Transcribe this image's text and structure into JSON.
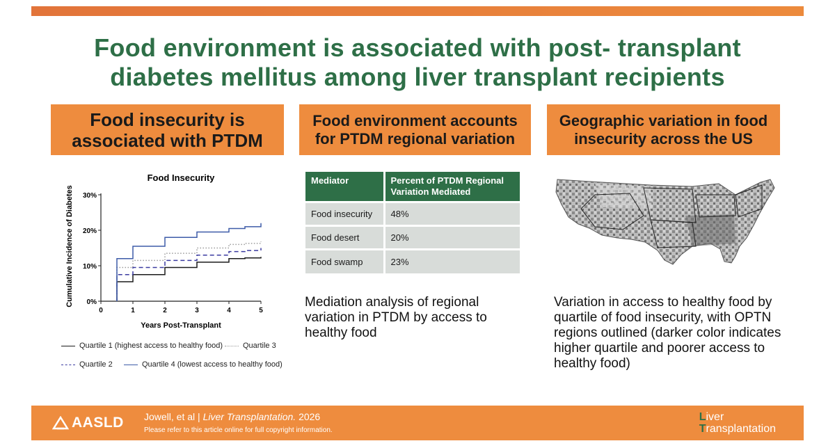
{
  "title": {
    "line1": "Food environment is associated with post- transplant",
    "line2": "diabetes mellitus among liver transplant recipients"
  },
  "panels": {
    "p1": {
      "heading_line1": "Food insecurity is",
      "heading_line2": "associated with PTDM"
    },
    "p2": {
      "heading_line1": "Food environment accounts",
      "heading_line2": "for PTDM regional variation"
    },
    "p3": {
      "heading_line1": "Geographic variation in food",
      "heading_line2": "insecurity across the US"
    }
  },
  "chart_data": {
    "type": "line",
    "step": true,
    "title": "Food Insecurity",
    "xlabel": "Years Post-Transplant",
    "ylabel": "Cumulative Incidence of Diabetes",
    "x_ticks": [
      "0",
      "1",
      "2",
      "3",
      "4",
      "5"
    ],
    "y_ticks": [
      "0%",
      "10%",
      "20%",
      "30%"
    ],
    "xlim": [
      0,
      5
    ],
    "ylim": [
      0,
      30
    ],
    "series": [
      {
        "name": "Quartile 1 (highest access to healthy food)",
        "style": "solid",
        "color": "#1a1a1a",
        "x": [
          0.5,
          1,
          2,
          3,
          4,
          4.5,
          5
        ],
        "y": [
          5.5,
          7.5,
          9.5,
          11,
          12,
          12.2,
          12.5
        ]
      },
      {
        "name": "Quartile 2",
        "style": "dashed",
        "color": "#3a3aa0",
        "x": [
          0.5,
          1,
          2,
          3,
          4,
          4.5,
          5
        ],
        "y": [
          7.5,
          9.5,
          11.5,
          13,
          14,
          14.3,
          15
        ]
      },
      {
        "name": "Quartile 3",
        "style": "dotted",
        "color": "#999999",
        "x": [
          0.5,
          1,
          2,
          3,
          4,
          4.5,
          5
        ],
        "y": [
          9.5,
          11.5,
          13.5,
          15,
          16,
          16.3,
          16.8
        ]
      },
      {
        "name": "Quartile 4 (lowest access to healthy food)",
        "style": "solid",
        "color": "#3d5ba8",
        "x": [
          0.5,
          1,
          2,
          3,
          4,
          4.5,
          5
        ],
        "y": [
          12,
          15.5,
          18,
          19.5,
          20.5,
          21,
          22
        ]
      }
    ],
    "legend_position": "bottom"
  },
  "mediation_table": {
    "headers": [
      "Mediator",
      "Percent of PTDM Regional Variation  Mediated"
    ],
    "rows": [
      [
        "Food insecurity",
        "48%"
      ],
      [
        "Food desert",
        "20%"
      ],
      [
        "Food swamp",
        "23%"
      ]
    ]
  },
  "descriptions": {
    "p2": "Mediation analysis of regional variation in PTDM by access to healthy food",
    "p3": "Variation in access to healthy food by quartile of food insecurity, with OPTN regions outlined (darker color indicates higher quartile and poorer access to healthy food)"
  },
  "footer": {
    "org": "AASLD",
    "authors": "Jowell, et al",
    "separator": "|",
    "journal": "Liver Transplantation.",
    "year": "2026",
    "copyright": "Please refer to this article online for full copyright information.",
    "journal_logo_line1": "Liver",
    "journal_logo_line2": "Transplantation"
  },
  "colors": {
    "accent_orange": "#ee8c3e",
    "title_green": "#2e6f47"
  }
}
